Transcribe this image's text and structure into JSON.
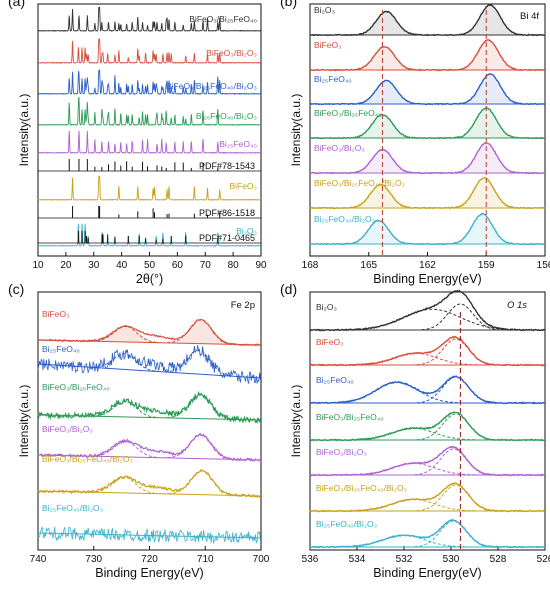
{
  "chart_data": [
    {
      "panel": "(a)",
      "type": "line",
      "xlabel": "2θ(°)",
      "ylabel": "Intensity(a.u.)",
      "xlim": [
        10,
        90
      ],
      "xticks": [
        "10",
        "20",
        "30",
        "40",
        "50",
        "60",
        "70",
        "80",
        "90"
      ],
      "series": [
        {
          "name": "BiFeO3/Bi25FeO40",
          "label": "BiFeO₃/Bi₂₅FeO₄₀",
          "color": "#333333"
        },
        {
          "name": "BiFeO3/Bi2O3",
          "label": "BiFeO₃/Bi₂O₃",
          "color": "#d94f3d"
        },
        {
          "name": "BiFeO3/Bi25FeO40/Bi2O3",
          "label": "BiFeO₃/Bi₂₅FeO₄₀/Bi₂O₃",
          "color": "#2c5fc9"
        },
        {
          "name": "Bi25FeO40/Bi2O3",
          "label": "Bi₂₅FeO₄₀/Bi₂O₃",
          "color": "#2e9b57"
        },
        {
          "name": "Bi25FeO40",
          "label": "Bi₂₅FeO₄₀",
          "color": "#b061d4",
          "pdf": "PDF#78-1543"
        },
        {
          "name": "BiFeO3",
          "label": "BiFeO₃",
          "color": "#c9a21a",
          "pdf": "PDF#86-1518"
        },
        {
          "name": "Bi2O3",
          "label": "Bi₂O₃",
          "color": "#3ab2c9",
          "pdf": "PDF#71-0465"
        }
      ],
      "reference_peaks": {
        "Bi25FeO40": [
          21.2,
          24.7,
          27.7,
          30.4,
          32.9,
          35.3,
          37.6,
          39.7,
          41.8,
          43.8,
          47.5,
          49.3,
          52.7,
          54.4,
          56.0,
          59.1,
          62.1,
          65.0,
          69.2,
          74.5
        ],
        "BiFeO3": [
          22.4,
          31.8,
          32.1,
          39.0,
          45.8,
          51.3,
          51.8,
          56.3,
          57.0,
          66.1,
          70.8,
          75.2
        ],
        "Bi2O3": [
          24.5,
          25.8,
          26.9,
          27.4,
          28.0,
          33.0,
          33.3,
          35.0,
          37.6,
          42.4,
          46.3,
          48.6,
          52.4,
          54.8,
          57.8,
          63.0,
          74.5
        ]
      }
    },
    {
      "panel": "(b)",
      "type": "line",
      "annotation": "Bi 4f",
      "xlabel": "Binding Energy(eV)",
      "ylabel": "Intensity(a.u.)",
      "xlim": [
        168,
        156
      ],
      "xticks": [
        "168",
        "165",
        "162",
        "159",
        "156"
      ],
      "peak_positions_eV": [
        164.3,
        159.0
      ],
      "series": [
        {
          "name": "Bi2O3",
          "label": "Bi₂O₃",
          "color": "#333333",
          "peaks_eV": [
            164.1,
            158.8
          ]
        },
        {
          "name": "BiFeO3",
          "label": "BiFeO₃",
          "color": "#d94f3d",
          "peaks_eV": [
            164.2,
            158.9
          ]
        },
        {
          "name": "Bi25FeO40",
          "label": "Bi₂₅FeO₄₀",
          "color": "#2c5fc9",
          "peaks_eV": [
            164.1,
            158.8
          ]
        },
        {
          "name": "BiFeO3/Bi25FeO40",
          "label": "BiFeO₃/Bi₂₅FeO₄₀",
          "color": "#2e9b57",
          "peaks_eV": [
            164.3,
            159.0
          ]
        },
        {
          "name": "BiFeO3/Bi2O3",
          "label": "BiFeO₃/Bi₂O₃",
          "color": "#b061d4",
          "peaks_eV": [
            164.3,
            159.0
          ]
        },
        {
          "name": "BiFeO3/Bi25FeO40/Bi2O3",
          "label": "BiFeO₃/Bi₂₅FeO₄₀/Bi₂O₃",
          "color": "#c9a21a",
          "peaks_eV": [
            164.4,
            159.1
          ]
        },
        {
          "name": "Bi25FeO40/Bi2O3",
          "label": "Bi₂₅FeO₄₀/Bi₂O₃",
          "color": "#3ab2c9",
          "peaks_eV": [
            164.5,
            159.2
          ]
        }
      ]
    },
    {
      "panel": "(c)",
      "type": "line",
      "annotation": "Fe 2p",
      "xlabel": "Binding Energy(eV)",
      "ylabel": "Intensity(a.u.)",
      "xlim": [
        740,
        700
      ],
      "xticks": [
        "740",
        "730",
        "720",
        "710",
        "700"
      ],
      "series": [
        {
          "name": "BiFeO3",
          "label": "BiFeO₃",
          "color": "#d94f3d",
          "peaks_eV": [
            724.3,
            710.8
          ]
        },
        {
          "name": "Bi25FeO40",
          "label": "Bi₂₅FeO₄₀",
          "color": "#2c5fc9",
          "peaks_eV": [
            724.5,
            711.2
          ]
        },
        {
          "name": "BiFeO3/Bi25FeO40",
          "label": "BiFeO₃/Bi₂₅FeO₄₀",
          "color": "#2e9b57",
          "peaks_eV": [
            724.4,
            710.9
          ]
        },
        {
          "name": "BiFeO3/Bi2O3",
          "label": "BiFeO₃/Bi₂O₃",
          "color": "#b061d4",
          "peaks_eV": [
            724.3,
            710.8
          ]
        },
        {
          "name": "BiFeO3/Bi25FeO40/Bi2O3",
          "label": "BiFeO₃/Bi₂₅FeO₄₀/Bi₂O₃",
          "color": "#c9a21a",
          "peaks_eV": [
            724.5,
            710.6
          ]
        },
        {
          "name": "Bi25FeO40/Bi2O3",
          "label": "Bi₂₅FeO₄₀/Bi₂O₃",
          "color": "#3ab2c9",
          "peaks_eV": []
        }
      ]
    },
    {
      "panel": "(d)",
      "type": "line",
      "annotation": "O 1s",
      "xlabel": "Binding Energy(eV)",
      "ylabel": "Intensity(a.u.)",
      "xlim": [
        536,
        526
      ],
      "xticks": [
        "536",
        "534",
        "532",
        "530",
        "528",
        "526"
      ],
      "reference_line_eV": 529.6,
      "series": [
        {
          "name": "Bi2O3",
          "label": "Bi₂O₃",
          "color": "#333333",
          "peaks_eV": [
            530.8,
            529.6
          ]
        },
        {
          "name": "BiFeO3",
          "label": "BiFeO₃",
          "color": "#d94f3d",
          "peaks_eV": [
            531.5,
            529.8
          ]
        },
        {
          "name": "Bi25FeO40",
          "label": "Bi₂₅FeO₄₀",
          "color": "#2c5fc9",
          "peaks_eV": [
            532.3,
            529.8
          ]
        },
        {
          "name": "BiFeO3/Bi25FeO40",
          "label": "BiFeO₃/Bi₂₅FeO₄₀",
          "color": "#2e9b57",
          "peaks_eV": [
            531.6,
            529.8
          ]
        },
        {
          "name": "BiFeO3/Bi2O3",
          "label": "BiFeO₃/Bi₂O₃",
          "color": "#b061d4",
          "peaks_eV": [
            531.6,
            529.9
          ]
        },
        {
          "name": "BiFeO3/Bi25FeO40/Bi2O3",
          "label": "BiFeO₃/Bi₂₅FeO₄₀/Bi₂O₃",
          "color": "#c9a21a",
          "peaks_eV": [
            531.6,
            529.8
          ]
        },
        {
          "name": "Bi25FeO40/Bi2O3",
          "label": "Bi₂₅FeO₄₀/Bi₂O₃",
          "color": "#3ab2c9",
          "peaks_eV": [
            532.0,
            529.9
          ]
        }
      ]
    }
  ]
}
